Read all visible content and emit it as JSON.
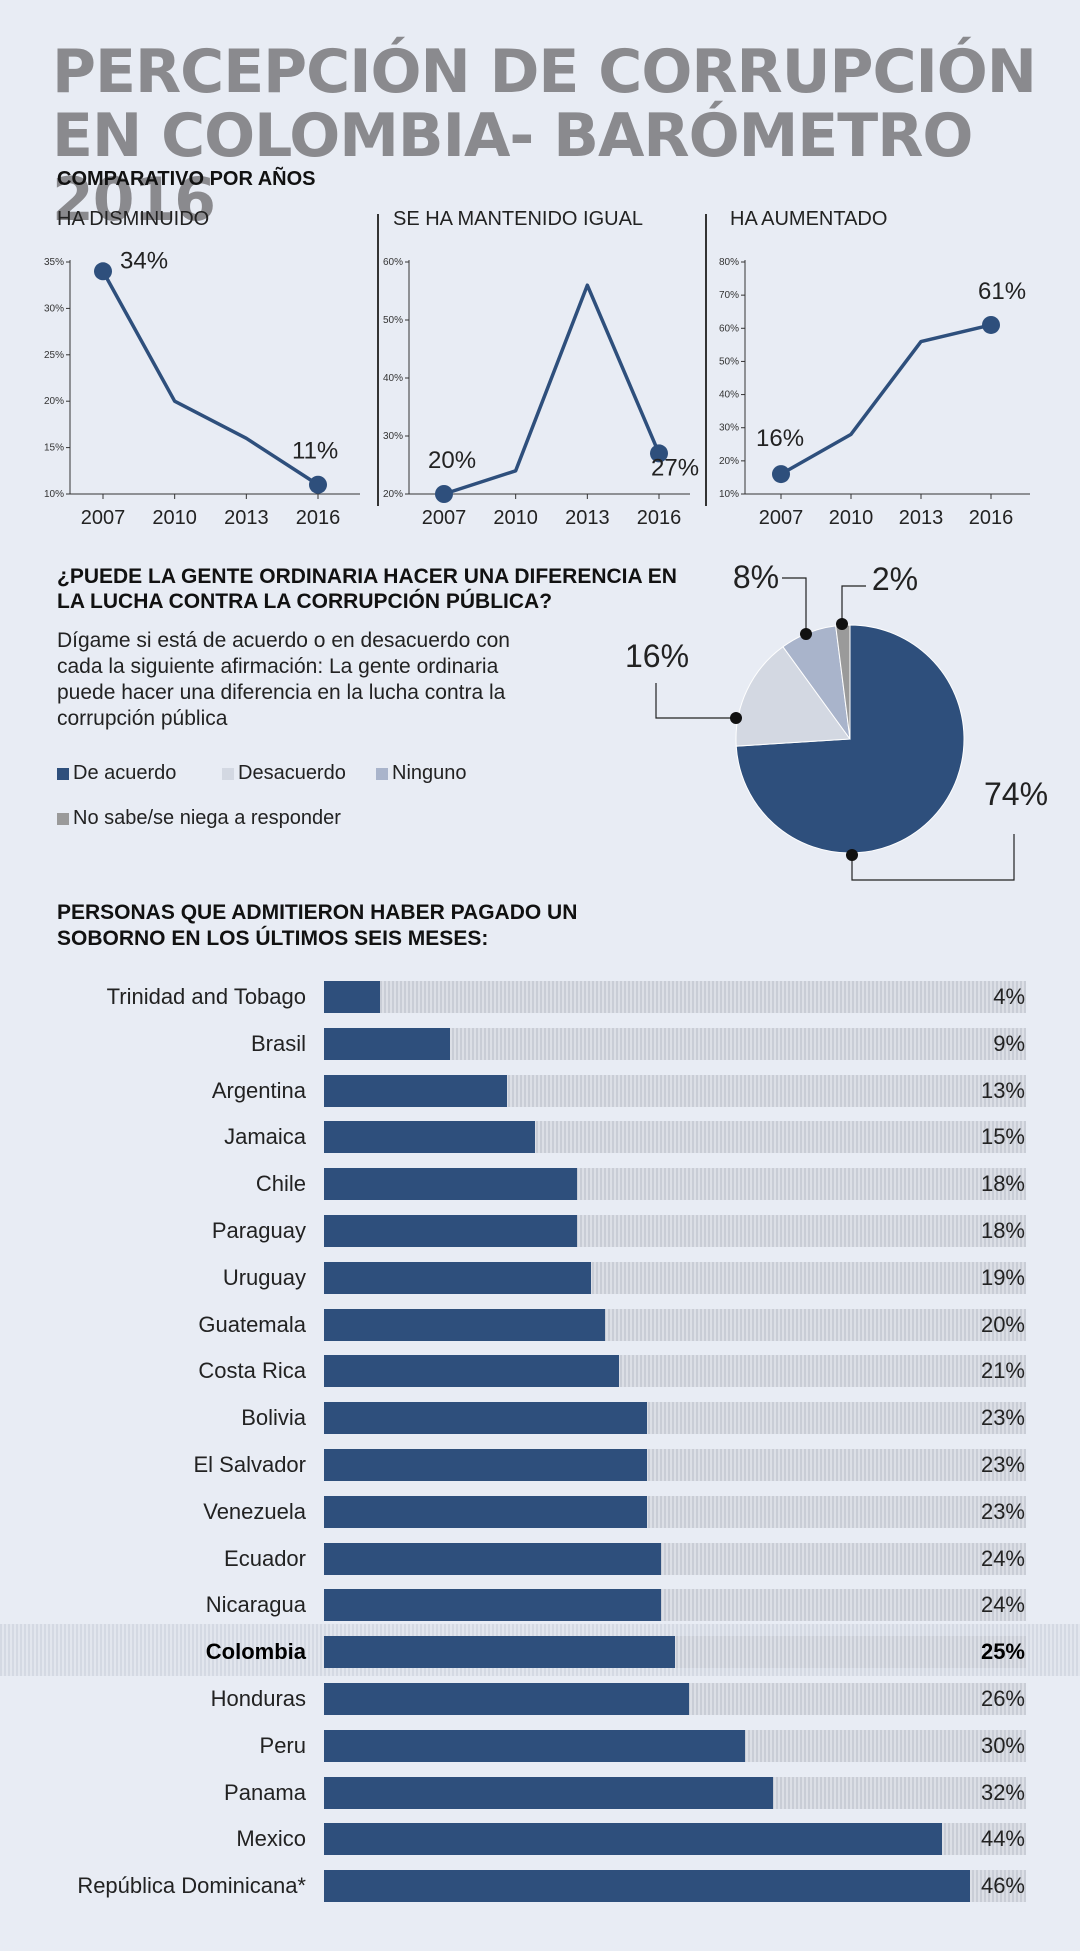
{
  "title": "PERCEPCIÓN DE CORRUPCIÓN EN COLOMBIA- BARÓMETRO 2016",
  "subtitle": "COMPARATIVO POR AÑOS",
  "colors": {
    "accent": "#2e4f7c",
    "background": "#e8ecf4",
    "title": "#8a8a8e",
    "grey": "#9a9a9a"
  },
  "line_panels": [
    {
      "title": "HA DISMINUIDO"
    },
    {
      "title": "SE HA MANTENIDO IGUAL"
    },
    {
      "title": "HA AUMENTADO"
    }
  ],
  "pie_section": {
    "question": "¿PUEDE LA GENTE ORDINARIA HACER UNA DIFERENCIA EN LA LUCHA CONTRA LA CORRUPCIÓN PÚBLICA?",
    "prompt": "Dígame si está de acuerdo o en desacuerdo con cada la siguiente afirmación: La gente ordinaria puede hacer una diferencia en la lucha contra la corrupción pública",
    "legend": [
      "De acuerdo",
      "Desacuerdo",
      "Ninguno",
      "No sabe/se niega a responder"
    ]
  },
  "bar_section": {
    "title": "PERSONAS QUE ADMITIERON HABER PAGADO UN SOBORNO EN LOS ÚLTIMOS SEIS MESES:",
    "highlight": "Colombia"
  },
  "chart_data": [
    {
      "type": "line",
      "title": "HA DISMINUIDO",
      "x": [
        "2007",
        "2010",
        "2013",
        "2016"
      ],
      "series": [
        {
          "values": [
            34,
            20,
            16,
            11
          ]
        }
      ],
      "ylim": [
        10,
        35
      ],
      "yticks": [
        "10%",
        "15%",
        "20%",
        "25%",
        "30%",
        "35%"
      ],
      "data_labels": {
        "first": "34%",
        "last": "11%"
      }
    },
    {
      "type": "line",
      "title": "SE HA MANTENIDO IGUAL",
      "x": [
        "2007",
        "2010",
        "2013",
        "2016"
      ],
      "series": [
        {
          "values": [
            20,
            24,
            56,
            27
          ]
        }
      ],
      "ylim": [
        20,
        60
      ],
      "yticks": [
        "20%",
        "30%",
        "40%",
        "50%",
        "60%"
      ],
      "data_labels": {
        "first": "20%",
        "last": "27%"
      }
    },
    {
      "type": "line",
      "title": "HA AUMENTADO",
      "x": [
        "2007",
        "2010",
        "2013",
        "2016"
      ],
      "series": [
        {
          "values": [
            16,
            28,
            56,
            61
          ]
        }
      ],
      "ylim": [
        10,
        80
      ],
      "yticks": [
        "10%",
        "20%",
        "30%",
        "40%",
        "50%",
        "60%",
        "70%",
        "80%"
      ],
      "data_labels": {
        "first": "16%",
        "last": "61%"
      }
    },
    {
      "type": "pie",
      "slices": [
        {
          "label": "De acuerdo",
          "value": 74,
          "text": "74%",
          "color": "#2e4f7c"
        },
        {
          "label": "Desacuerdo",
          "value": 16,
          "text": "16%",
          "color": "#d3d8e2"
        },
        {
          "label": "Ninguno",
          "value": 8,
          "text": "8%",
          "color": "#a9b4cb"
        },
        {
          "label": "No sabe/se niega a responder",
          "value": 2,
          "text": "2%",
          "color": "#9a9a9a"
        }
      ]
    },
    {
      "type": "bar",
      "orientation": "horizontal",
      "categories": [
        "Trinidad and Tobago",
        "Brasil",
        "Argentina",
        "Jamaica",
        "Chile",
        "Paraguay",
        "Uruguay",
        "Guatemala",
        "Costa Rica",
        "Bolivia",
        "El Salvador",
        "Venezuela",
        "Ecuador",
        "Nicaragua",
        "Colombia",
        "Honduras",
        "Peru",
        "Panama",
        "Mexico",
        "República Dominicana*"
      ],
      "values": [
        4,
        9,
        13,
        15,
        18,
        18,
        19,
        20,
        21,
        23,
        23,
        23,
        24,
        24,
        25,
        26,
        30,
        32,
        44,
        46
      ],
      "value_labels": [
        "4%",
        "9%",
        "13%",
        "15%",
        "18%",
        "18%",
        "19%",
        "20%",
        "21%",
        "23%",
        "23%",
        "23%",
        "24%",
        "24%",
        "25%",
        "26%",
        "30%",
        "32%",
        "44%",
        "46%"
      ],
      "xlim": [
        0,
        50
      ]
    }
  ]
}
